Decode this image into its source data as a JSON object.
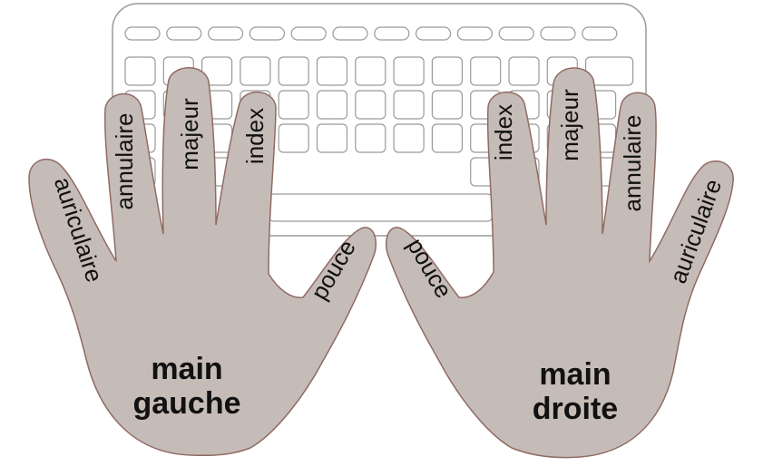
{
  "colors": {
    "hand_fill": "#c6bcb7",
    "hand_stroke": "#8f6b63",
    "keyboard_stroke": "#9a9a9a",
    "key_fill": "#ffffff",
    "background": "#ffffff"
  },
  "left_hand": {
    "pinky": "auriculaire",
    "ring": "annulaire",
    "middle": "majeur",
    "index": "index",
    "thumb": "pouce",
    "title_line1": "main",
    "title_line2": "gauche"
  },
  "right_hand": {
    "thumb": "pouce",
    "index": "index",
    "middle": "majeur",
    "ring": "annulaire",
    "pinky": "auriculaire",
    "title_line1": "main",
    "title_line2": "droite"
  },
  "keyboard": {
    "function_row_keys": 12,
    "key_rows": 4,
    "keys_per_row": 13
  }
}
